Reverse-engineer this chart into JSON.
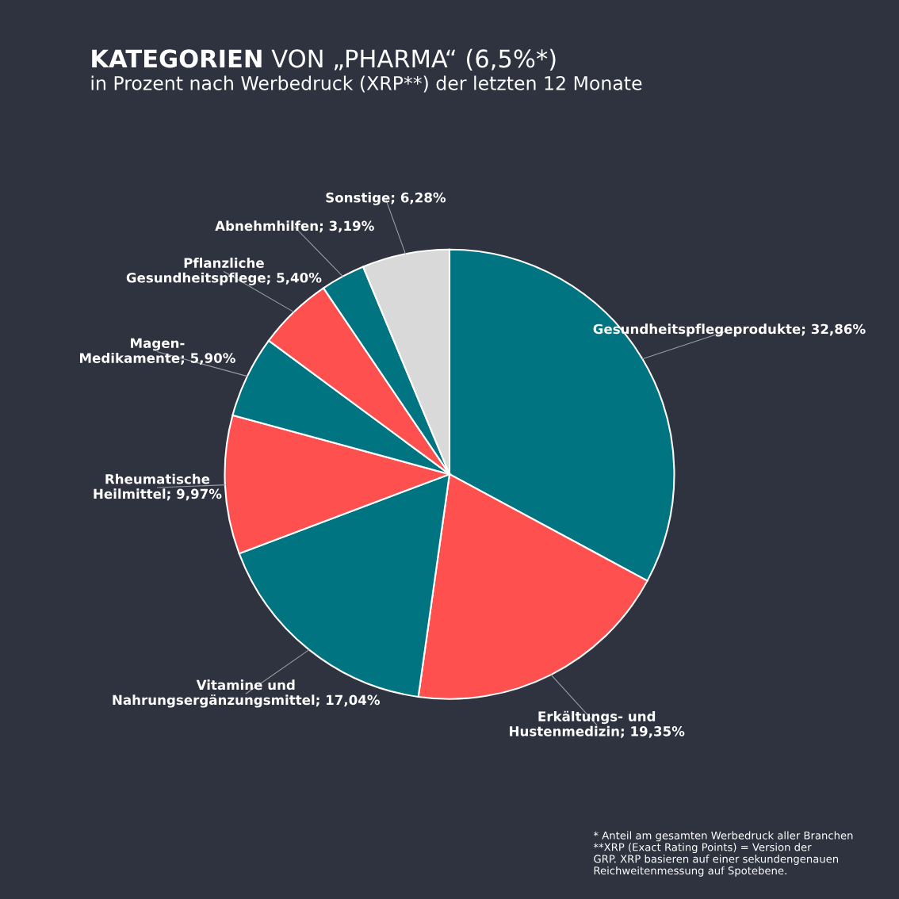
{
  "chart_data": {
    "type": "pie",
    "title": "KATEGORIEN VON „PHARMA“ (6,5%*)",
    "subtitle": "in Prozent nach Werbedruck (XRP**) der letzten 12 Monate",
    "categories": [
      "Gesundheitspflegeprodukte",
      "Erkältungs- und\nHustenmedizin",
      "Vitamine und\nNahrungsergänzungsmittel",
      "Rheumatische\nHeilmittel",
      "Magen-\nMedikamente",
      "Pflanzliche\nGesundheitspflege",
      "Abnehmhilfen",
      "Sonstige"
    ],
    "values": [
      32.86,
      19.35,
      17.04,
      9.97,
      5.9,
      5.4,
      3.19,
      6.28
    ],
    "value_labels": [
      "32,86%",
      "19,35%",
      "17,04%",
      "9,97%",
      "5,90%",
      "5,40%",
      "3,19%",
      "6,28%"
    ],
    "colors": [
      "#007480",
      "#ff5050",
      "#007480",
      "#ff5050",
      "#007480",
      "#ff5050",
      "#007480",
      "#d9d9d9"
    ],
    "annotations": [
      "* Anteil am gesamten Werbedruck aller Branchen\n**XRP (Exact Rating Points) = Version der\nGRP. XRP basieren auf einer sekundengenauen\nReichweitenmessung auf Spotebene."
    ]
  }
}
